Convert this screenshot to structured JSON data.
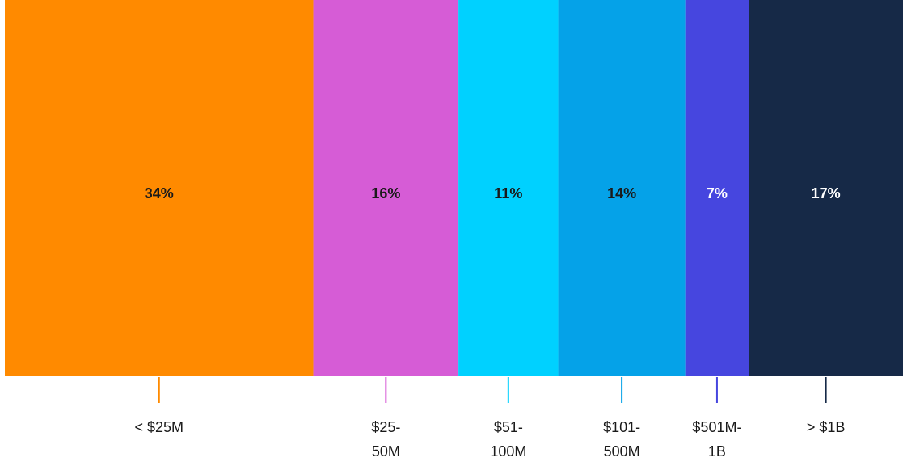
{
  "chart_data": {
    "type": "bar",
    "subtype": "stacked-100-percent-single-bar",
    "title": "",
    "xlabel": "",
    "ylabel": "",
    "categories": [
      "< $25M",
      "$25-\n50M",
      "$51-\n100M",
      "$101-\n500M",
      "$501M-\n1B",
      "> $1B"
    ],
    "values": [
      34,
      16,
      11,
      14,
      7,
      17
    ],
    "value_labels": [
      "34%",
      "16%",
      "11%",
      "14%",
      "7%",
      "17%"
    ],
    "colors": [
      "#FF8A00",
      "#D65CD6",
      "#00D1FF",
      "#05A2E8",
      "#4646DF",
      "#162947"
    ],
    "label_colors": [
      "#1a1a1a",
      "#1a1a1a",
      "#1a1a1a",
      "#1a1a1a",
      "#ffffff",
      "#ffffff"
    ],
    "grid": false,
    "legend": "none"
  }
}
